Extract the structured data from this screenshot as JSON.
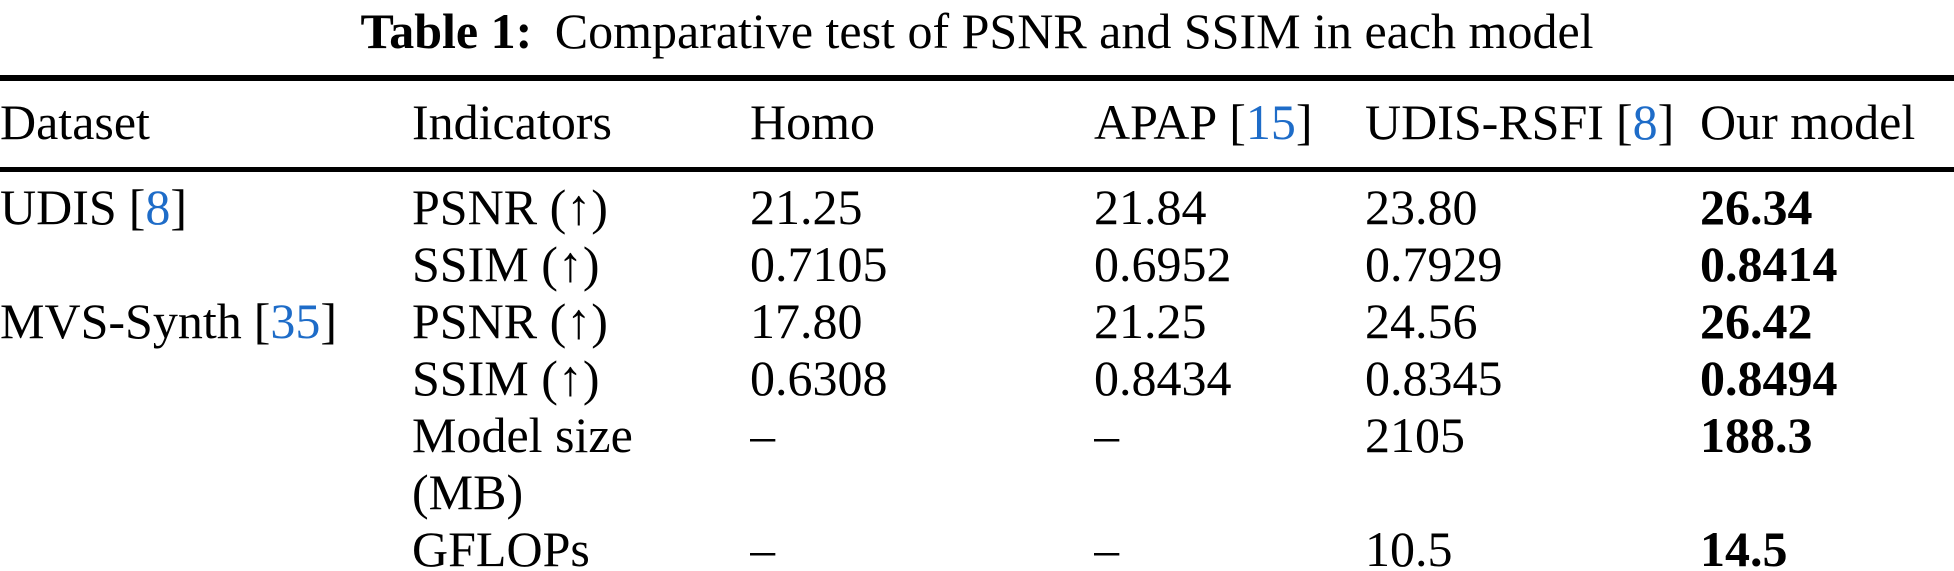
{
  "title": {
    "prefix": "Table 1:",
    "text": "Comparative test of PSNR and SSIM in each model"
  },
  "citation": {
    "open": "[",
    "close": "]"
  },
  "colors": {
    "citation": "#1E6CC8",
    "text": "#000000",
    "rule": "#000000",
    "background": "#ffffff"
  },
  "table": {
    "headers": [
      {
        "label": "Dataset"
      },
      {
        "label": "Indicators"
      },
      {
        "label": "Homo"
      },
      {
        "label": "APAP",
        "cite": "15"
      },
      {
        "label": "UDIS-RSFI",
        "cite": "8"
      },
      {
        "label": "Our model"
      }
    ],
    "rows": [
      {
        "dataset": {
          "label": "UDIS",
          "cite": "8"
        },
        "indicator": "PSNR (↑)",
        "values": [
          "21.25",
          "21.84",
          "23.80",
          "26.34"
        ]
      },
      {
        "dataset": null,
        "indicator": "SSIM (↑)",
        "values": [
          "0.7105",
          "0.6952",
          "0.7929",
          "0.8414"
        ]
      },
      {
        "dataset": {
          "label": "MVS-Synth",
          "cite": "35"
        },
        "indicator": "PSNR (↑)",
        "values": [
          "17.80",
          "21.25",
          "24.56",
          "26.42"
        ]
      },
      {
        "dataset": null,
        "indicator": "SSIM (↑)",
        "values": [
          "0.6308",
          "0.8434",
          "0.8345",
          "0.8494"
        ]
      },
      {
        "dataset": null,
        "indicator": "Model size",
        "indicator_line2": "(MB)",
        "values": [
          "–",
          "–",
          "2105",
          "188.3"
        ]
      },
      {
        "dataset": null,
        "indicator": "GFLOPs",
        "values": [
          "–",
          "–",
          "10.5",
          "14.5"
        ]
      }
    ]
  }
}
